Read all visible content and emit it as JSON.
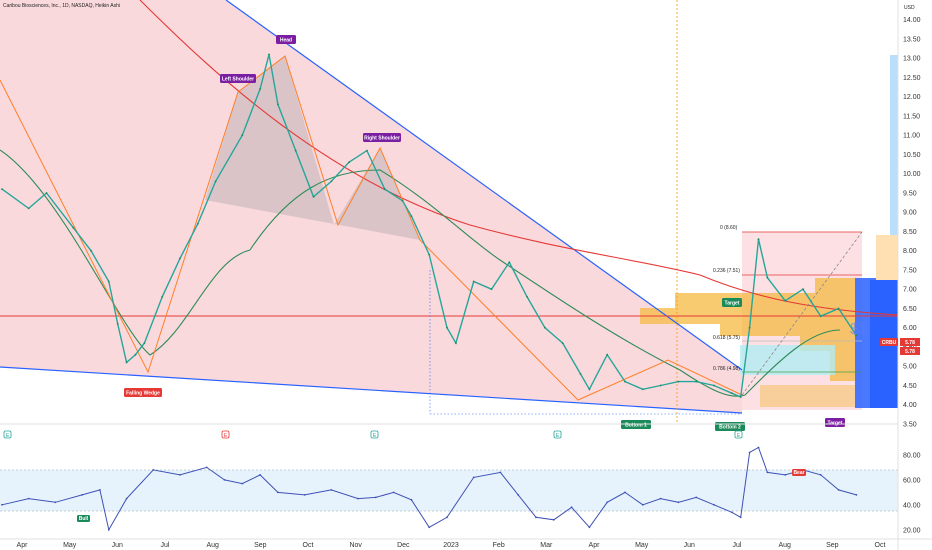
{
  "chart_data": [
    {
      "type": "line",
      "title": "Caribou Biosciences, Inc., 1D, NASDAQ, Heikin Ashi",
      "currency_label": "USD",
      "ticker_tag": "CRBU",
      "price_tags": [
        "5.78",
        "5.78"
      ],
      "x_labels": [
        "Apr",
        "May",
        "Jun",
        "Jul",
        "Aug",
        "Sep",
        "Oct",
        "Nov",
        "Dec",
        "2023",
        "Feb",
        "Mar",
        "Apr",
        "May",
        "Jun",
        "Jul",
        "Aug",
        "Sep",
        "Oct"
      ],
      "y_ticks": [
        "14.00",
        "13.50",
        "13.00",
        "12.50",
        "12.00",
        "11.50",
        "11.00",
        "10.50",
        "10.00",
        "9.50",
        "9.00",
        "8.50",
        "8.00",
        "7.50",
        "7.00",
        "6.50",
        "6.00",
        "5.50",
        "5.00",
        "4.50",
        "4.00",
        "3.50"
      ],
      "ylim": [
        3.5,
        14.2
      ],
      "series": [
        {
          "points": [
            [
              0,
              9.6
            ],
            [
              3,
              9.1
            ],
            [
              5,
              9.5
            ],
            [
              8,
              8.6
            ],
            [
              10,
              8.0
            ],
            [
              12,
              7.2
            ],
            [
              13,
              6.1
            ],
            [
              14,
              5.1
            ],
            [
              15,
              5.3
            ],
            [
              16,
              5.6
            ],
            [
              18,
              6.8
            ],
            [
              20,
              7.8
            ],
            [
              22,
              8.7
            ],
            [
              24,
              9.8
            ],
            [
              27,
              11.0
            ],
            [
              29,
              12.2
            ],
            [
              30,
              13.1
            ],
            [
              31,
              11.8
            ],
            [
              33,
              10.6
            ],
            [
              35,
              9.4
            ],
            [
              37,
              9.8
            ],
            [
              39,
              10.3
            ],
            [
              41,
              10.6
            ],
            [
              43,
              9.6
            ],
            [
              45,
              9.3
            ],
            [
              46,
              8.9
            ],
            [
              48,
              7.9
            ],
            [
              50,
              6.0
            ],
            [
              51,
              5.6
            ],
            [
              53,
              7.2
            ],
            [
              55,
              7.0
            ],
            [
              57,
              7.7
            ],
            [
              59,
              6.8
            ],
            [
              61,
              6.0
            ],
            [
              63,
              5.6
            ],
            [
              65,
              4.8
            ],
            [
              66,
              4.4
            ],
            [
              68,
              5.3
            ],
            [
              70,
              4.6
            ],
            [
              72,
              4.4
            ],
            [
              74,
              4.5
            ],
            [
              76,
              4.6
            ],
            [
              78,
              4.6
            ],
            [
              80,
              4.5
            ],
            [
              82,
              4.3
            ],
            [
              83,
              4.2
            ],
            [
              84,
              6.0
            ],
            [
              85,
              8.3
            ],
            [
              86,
              7.3
            ],
            [
              88,
              6.7
            ],
            [
              90,
              7.0
            ],
            [
              92,
              6.3
            ],
            [
              94,
              6.5
            ],
            [
              96,
              5.8
            ]
          ]
        }
      ],
      "fib_labels": [
        "0 (8.60)",
        "0.236 (7.51)",
        "0.618 (5.75)",
        "0.786 (4.98)"
      ],
      "annotations": [
        "Head",
        "Left Shoulder",
        "Right Shoulder",
        "Falling Wedge",
        "Bottom 1",
        "Bottom 2",
        "Target",
        "Target",
        "$$"
      ],
      "event_marker": "E"
    },
    {
      "type": "line",
      "y_ticks": [
        "80.00",
        "60.00",
        "40.00",
        "20.00"
      ],
      "ylim": [
        15,
        88
      ],
      "annotations": [
        "Bull",
        "Bear"
      ],
      "series": [
        {
          "points": [
            [
              0,
              40
            ],
            [
              3,
              45
            ],
            [
              6,
              42
            ],
            [
              9,
              48
            ],
            [
              11,
              52
            ],
            [
              12,
              20
            ],
            [
              14,
              45
            ],
            [
              17,
              68
            ],
            [
              20,
              64
            ],
            [
              23,
              70
            ],
            [
              25,
              60
            ],
            [
              27,
              57
            ],
            [
              29,
              64
            ],
            [
              31,
              50
            ],
            [
              34,
              48
            ],
            [
              37,
              52
            ],
            [
              40,
              45
            ],
            [
              42,
              46
            ],
            [
              44,
              50
            ],
            [
              46,
              44
            ],
            [
              48,
              22
            ],
            [
              50,
              30
            ],
            [
              53,
              62
            ],
            [
              56,
              66
            ],
            [
              58,
              48
            ],
            [
              60,
              30
            ],
            [
              62,
              28
            ],
            [
              64,
              38
            ],
            [
              66,
              22
            ],
            [
              68,
              42
            ],
            [
              70,
              50
            ],
            [
              72,
              40
            ],
            [
              74,
              45
            ],
            [
              76,
              42
            ],
            [
              78,
              46
            ],
            [
              80,
              40
            ],
            [
              82,
              34
            ],
            [
              83,
              30
            ],
            [
              84,
              82
            ],
            [
              85,
              86
            ],
            [
              86,
              66
            ],
            [
              88,
              64
            ],
            [
              90,
              68
            ],
            [
              92,
              64
            ],
            [
              94,
              52
            ],
            [
              96,
              48
            ]
          ]
        }
      ]
    }
  ]
}
